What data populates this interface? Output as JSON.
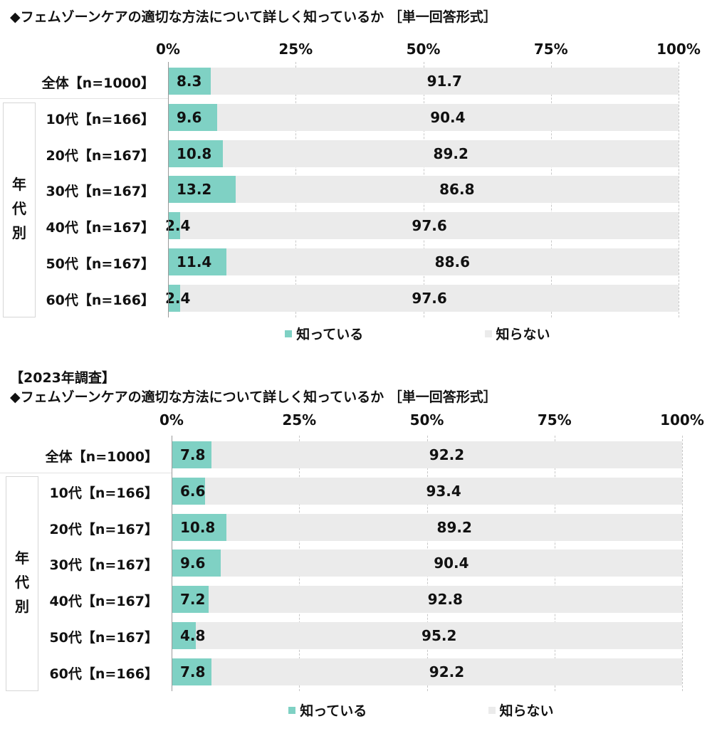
{
  "colors": {
    "know": "#7fd1c4",
    "not_know": "#ebebeb"
  },
  "chart_data": [
    {
      "type": "bar",
      "stacked": true,
      "orientation": "horizontal",
      "heading": "",
      "title": "◆フェムゾーンケアの適切な方法について詳しく知っているか ［単一回答形式］",
      "xlim": [
        0,
        100
      ],
      "ticks": [
        "0%",
        "25%",
        "50%",
        "75%",
        "100%"
      ],
      "group_label": "年代別",
      "group_chars": [
        "年",
        "代",
        "別"
      ],
      "categories": [
        "全体【n=1000】",
        "10代【n=166】",
        "20代【n=167】",
        "30代【n=167】",
        "40代【n=167】",
        "50代【n=167】",
        "60代【n=166】"
      ],
      "series": [
        {
          "name": "知っている",
          "values": [
            8.3,
            9.6,
            10.8,
            13.2,
            2.4,
            11.4,
            2.4
          ]
        },
        {
          "name": "知らない",
          "values": [
            91.7,
            90.4,
            89.2,
            86.8,
            97.6,
            88.6,
            97.6
          ]
        }
      ],
      "legend": "bottom"
    },
    {
      "type": "bar",
      "stacked": true,
      "orientation": "horizontal",
      "heading": "【2023年調査】",
      "title": "◆フェムゾーンケアの適切な方法について詳しく知っているか ［単一回答形式］",
      "xlim": [
        0,
        100
      ],
      "ticks": [
        "0%",
        "25%",
        "50%",
        "75%",
        "100%"
      ],
      "group_label": "年代別",
      "group_chars": [
        "年",
        "代",
        "別"
      ],
      "categories": [
        "全体【n=1000】",
        "10代【n=166】",
        "20代【n=167】",
        "30代【n=167】",
        "40代【n=167】",
        "50代【n=167】",
        "60代【n=166】"
      ],
      "series": [
        {
          "name": "知っている",
          "values": [
            7.8,
            6.6,
            10.8,
            9.6,
            7.2,
            4.8,
            7.8
          ]
        },
        {
          "name": "知らない",
          "values": [
            92.2,
            93.4,
            89.2,
            90.4,
            92.8,
            95.2,
            92.2
          ]
        }
      ],
      "legend": "bottom"
    }
  ]
}
